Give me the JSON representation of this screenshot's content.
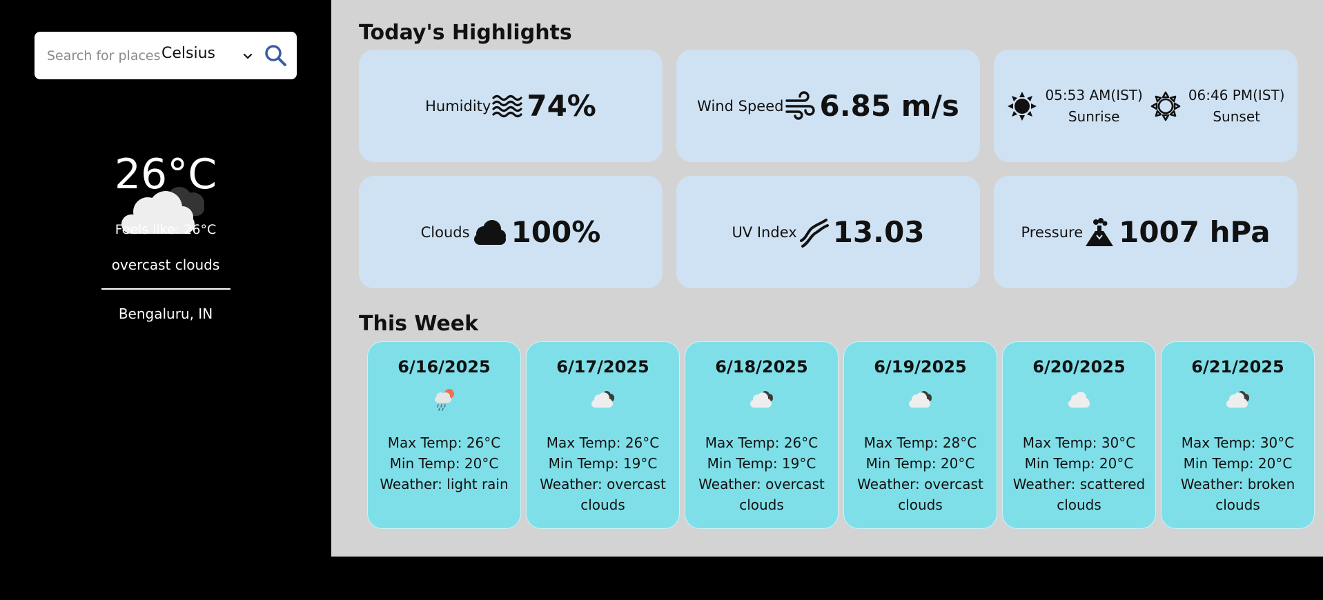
{
  "search": {
    "placeholder": "Search for places",
    "unit": "Celsius"
  },
  "current": {
    "temperature": "26°C",
    "feels_like": "Feels like: 26°C",
    "description": "overcast clouds",
    "location": "Bengaluru, IN"
  },
  "highlights": {
    "title": "Today's Highlights",
    "humidity": {
      "label": "Humidity",
      "value": "74%"
    },
    "wind": {
      "label": "Wind Speed",
      "value": "6.85 m/s"
    },
    "sunrise": {
      "time": "05:53 AM(IST)",
      "label": "Sunrise"
    },
    "sunset": {
      "time": "06:46 PM(IST)",
      "label": "Sunset"
    },
    "clouds": {
      "label": "Clouds",
      "value": "100%"
    },
    "uv": {
      "label": "UV Index",
      "value": "13.03"
    },
    "pressure": {
      "label": "Pressure",
      "value": "1007 hPa"
    }
  },
  "week": {
    "title": "This Week",
    "days": [
      {
        "date": "6/16/2025",
        "icon": "light-rain-icon",
        "max": "Max Temp: 26°C",
        "min": "Min Temp: 20°C",
        "weather": "Weather: light rain"
      },
      {
        "date": "6/17/2025",
        "icon": "broken-clouds-icon",
        "max": "Max Temp: 26°C",
        "min": "Min Temp: 19°C",
        "weather": "Weather: overcast clouds"
      },
      {
        "date": "6/18/2025",
        "icon": "broken-clouds-icon",
        "max": "Max Temp: 26°C",
        "min": "Min Temp: 19°C",
        "weather": "Weather: overcast clouds"
      },
      {
        "date": "6/19/2025",
        "icon": "broken-clouds-icon",
        "max": "Max Temp: 28°C",
        "min": "Min Temp: 20°C",
        "weather": "Weather: overcast clouds"
      },
      {
        "date": "6/20/2025",
        "icon": "scattered-clouds-icon",
        "max": "Max Temp: 30°C",
        "min": "Min Temp: 20°C",
        "weather": "Weather: scattered clouds"
      },
      {
        "date": "6/21/2025",
        "icon": "broken-clouds-icon",
        "max": "Max Temp: 30°C",
        "min": "Min Temp: 20°C",
        "weather": "Weather: broken clouds"
      }
    ]
  },
  "colors": {
    "sidebar_bg": "#000000",
    "main_bg": "#d3d3d3",
    "highlight_card": "#cfe2f3",
    "day_card": "#7fdfe8",
    "search_icon": "#3b5ba5"
  }
}
